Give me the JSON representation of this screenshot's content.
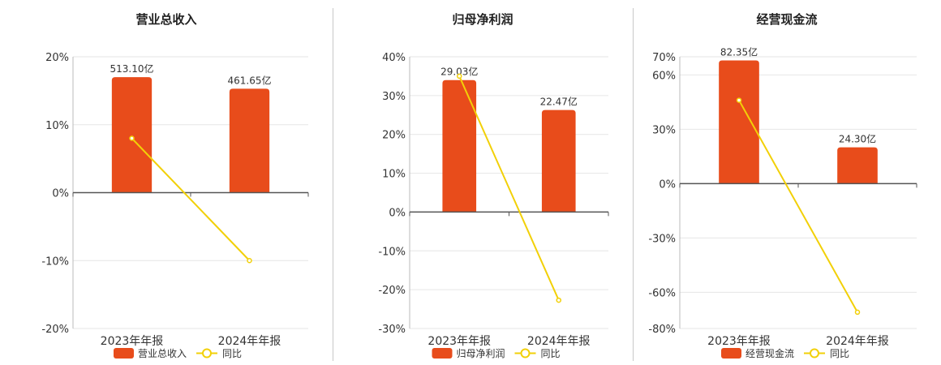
{
  "colors": {
    "bar": "#e84c1b",
    "line": "#f2d008",
    "grid": "#e6e6e6",
    "axis": "#555555",
    "text": "#333333"
  },
  "chart_data": [
    {
      "type": "bar",
      "title": "营业总收入",
      "categories": [
        "2023年年报",
        "2024年年报"
      ],
      "series": [
        {
          "name": "营业总收入",
          "kind": "bar",
          "values": [
            17,
            15.3
          ],
          "labels": [
            "513.10亿",
            "461.65亿"
          ]
        },
        {
          "name": "同比",
          "kind": "line",
          "values": [
            8.0,
            -10.0
          ]
        }
      ],
      "ylim": [
        -20,
        20
      ],
      "yticks": [
        20,
        10,
        0,
        -10,
        -20
      ],
      "ytick_labels": [
        "20%",
        "10%",
        "0%",
        "-10%",
        "-20%"
      ],
      "grid": true,
      "legend": "bottom"
    },
    {
      "type": "bar",
      "title": "归母净利润",
      "categories": [
        "2023年年报",
        "2024年年报"
      ],
      "series": [
        {
          "name": "归母净利润",
          "kind": "bar",
          "values": [
            34,
            26.3
          ],
          "labels": [
            "29.03亿",
            "22.47亿"
          ]
        },
        {
          "name": "同比",
          "kind": "line",
          "values": [
            35.0,
            -22.7
          ]
        }
      ],
      "ylim": [
        -30,
        40
      ],
      "yticks": [
        40,
        30,
        20,
        10,
        0,
        -10,
        -20,
        -30
      ],
      "ytick_labels": [
        "40%",
        "30%",
        "20%",
        "10%",
        "0%",
        "-10%",
        "-20%",
        "-30%"
      ],
      "grid": true,
      "legend": "bottom"
    },
    {
      "type": "bar",
      "title": "经营现金流",
      "categories": [
        "2023年年报",
        "2024年年报"
      ],
      "series": [
        {
          "name": "经营现金流",
          "kind": "bar",
          "values": [
            68,
            20
          ],
          "labels": [
            "82.35亿",
            "24.30亿"
          ]
        },
        {
          "name": "同比",
          "kind": "line",
          "values": [
            46.0,
            -71.0
          ]
        }
      ],
      "ylim": [
        -80,
        70
      ],
      "yticks": [
        70,
        60,
        30,
        0,
        -30,
        -60,
        -80
      ],
      "ytick_labels": [
        "70%",
        "60%",
        "30%",
        "0%",
        "-30%",
        "-60%",
        "-80%"
      ],
      "grid": true,
      "legend": "bottom"
    }
  ]
}
